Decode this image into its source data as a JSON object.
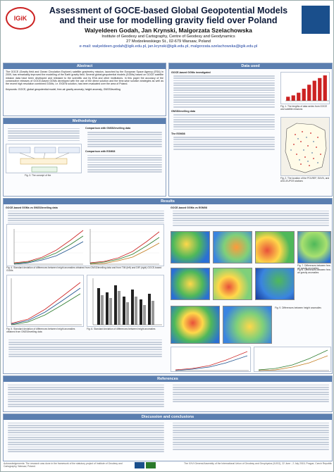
{
  "title_line1": "Assessment of GOCE-based Global Geopotential Models",
  "title_line2": "and their use for modelling gravity field over Poland",
  "authors": "Walyeldeen Godah, Jan Krynski, Malgorzata Szelachowska",
  "affiliation1": "Institute of Geodesy and Cartography, Centre of Geodesy and Geodynamics",
  "affiliation2": "27 Modzelewskiego St., 02-679 Warsaw, Poland",
  "emails": "e-mail: walyeldeen.godah@igik.edu.pl, jan.krynski@igik.edu.pl, malgorzata.szelachowska@igik.edu.pl",
  "logo_left": "IGiK",
  "sections": {
    "abstract": "Abstract",
    "data_used": "Data used",
    "methodology": "Methodology",
    "results": "Results",
    "references": "References",
    "discussion": "Discussion and conclusions"
  },
  "keywords": "Keywords: GOCE, global geopotential model, free-air gravity anomaly, height anomaly, GNSS/levelling",
  "abstract_text": "The GOCE (Gravity field and Ocean Circulation Explorer) satellite gravimetry mission, launched by the European Space Agency (ESA) in 2009, has remarkably improved the modelling of the Earth gravity field. Several global geopotential models (GGMs) based on GOCE satellite mission data have been developed and released to the scientific use by ESA and other institutions. In this paper the accuracy of the consecutive releases of GOCE-based GGMs developed with the use of the direct solution and the time-wise solution strategies as well as the recent high resolution combined GGMs, i.e. EIGEN solution, has been evaluated over the area of Poland.",
  "data_list": [
    "GOCE-based GGMs investigated",
    "GNSS/levelling data",
    "The EGM08"
  ],
  "results_left": "GOCE-based GGMs vs GNSS/levelling data",
  "results_right": "GOCE-based GGMs vs EGM08",
  "methodology_sub": [
    "Comparison with GNSS/levelling data",
    "Comparison with EGM08"
  ],
  "fig_captions": {
    "fig1": "Fig. 1. The lengths of data series from GOCE and satellite missions",
    "fig2": "Fig. 2. The location of the POLREF, EUVN, and ASG-EUPOS stations",
    "fig3": "Fig. 3. The concept of the",
    "fig4": "Fig. 4. Standard deviation of differences between height anomalies obtained from GNSS/levelling data and from TIM (left) and DIR (right) GOCE-based GGMs",
    "fig5": "Fig. 5. Standard deviation of differences between height anomalies obtained from GNSS/levelling data",
    "fig6": "Fig. 6. Standard deviation of differences between height anomalies",
    "fig7": "Fig. 7. Differences between free-air gravity anomalies",
    "fig8": "Fig. 8. Differences between free-air gravity anomalies",
    "fig9": "Fig. 9. Differences between height anomalies",
    "fig10": "Fig. 10. Standard deviation of differences between free-air gravity anomalies",
    "fig11": "Fig. 11. Differences between height anomalies",
    "fig12": "Fig. 12. Standard deviation of differences between height anomalies"
  },
  "acknowledgements": "Acknowledgements: The research was done in the framework of the statutory project of Institute of Geodesy and Cartography, Warsaw, Poland.",
  "conference": "The XXVI General Assembly of the International Union of Geodesy and Geophysics (IUGG), 22 June - 2 July 2015, Prague, Czech Republic",
  "fig1_data": {
    "categories": [
      "1",
      "2",
      "3",
      "4",
      "5",
      "6",
      "7",
      "8"
    ],
    "values": [
      6,
      8,
      12,
      18,
      24,
      30,
      34,
      38
    ]
  },
  "colors": {
    "bar": "#5b7fb0",
    "header_title": "#0d1b3a",
    "accent_red": "#c22"
  }
}
